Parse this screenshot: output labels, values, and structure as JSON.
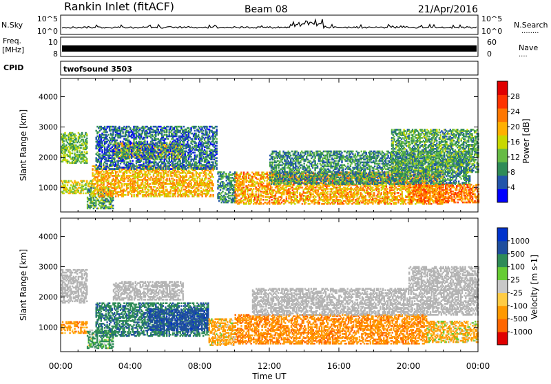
{
  "header": {
    "station": "Rankin Inlet (fitACF)",
    "beam": "Beam 08",
    "date": "21/Apr/2016"
  },
  "top_panels": {
    "nsky_label": "N.Sky",
    "nsearch_label": "N.Search",
    "noise_ticks": [
      "10^5",
      "10^0"
    ],
    "freq_label": "Freq.",
    "freq_unit": "[MHz]",
    "freq_ticks": [
      "10",
      "8"
    ],
    "nave_label": "Nave",
    "nave_ticks": [
      "60",
      "0"
    ],
    "cpid_label": "CPID",
    "cpid_value": "twofsound 3503",
    "dotted_marker": "........",
    "nave_marker": "...."
  },
  "colors": {
    "power_scale": [
      "#0000ff",
      "#2255aa",
      "#2e8b57",
      "#66bb44",
      "#c8d800",
      "#ffb000",
      "#ff7700",
      "#ff3300",
      "#e00000"
    ],
    "velocity_scale": [
      "#e00000",
      "#ff6600",
      "#ff9900",
      "#ffcc44",
      "#c8c8c8",
      "#66cc33",
      "#2e8b57",
      "#1f4e9e",
      "#0033cc"
    ],
    "ground_scatter": "#b4b4b4"
  },
  "chart_data": [
    {
      "type": "heatmap",
      "panel": "power",
      "ylabel": "Slant Range [km]",
      "ylim": [
        200,
        4600
      ],
      "y_ticks": [
        1000,
        2000,
        3000,
        4000
      ],
      "xlim": [
        0,
        24
      ],
      "x_ticks": [
        "00:00",
        "04:00",
        "08:00",
        "12:00",
        "16:00",
        "20:00",
        "00:00"
      ],
      "colorbar": {
        "label": "Power [dB]",
        "range": [
          0,
          32
        ],
        "ticks": [
          4,
          8,
          12,
          16,
          20,
          24,
          28
        ]
      },
      "echo_bands": [
        {
          "t": [
            0.0,
            1.8
          ],
          "r": [
            800,
            1250
          ],
          "value": 18
        },
        {
          "t": [
            0.0,
            1.5
          ],
          "r": [
            1800,
            2800
          ],
          "value": 14
        },
        {
          "t": [
            1.5,
            3.0
          ],
          "r": [
            300,
            1000
          ],
          "value": 12
        },
        {
          "t": [
            1.8,
            8.8
          ],
          "r": [
            700,
            1700
          ],
          "value": 22
        },
        {
          "t": [
            3.0,
            7.0
          ],
          "r": [
            1950,
            2450
          ],
          "value": 20
        },
        {
          "t": [
            2.0,
            9.0
          ],
          "r": [
            1600,
            3000
          ],
          "value": 8
        },
        {
          "t": [
            9.0,
            10.0
          ],
          "r": [
            500,
            1500
          ],
          "value": 10
        },
        {
          "t": [
            10.0,
            22.0
          ],
          "r": [
            450,
            1500
          ],
          "value": 23
        },
        {
          "t": [
            12.0,
            23.5
          ],
          "r": [
            1100,
            2200
          ],
          "value": 10
        },
        {
          "t": [
            19.0,
            24.0
          ],
          "r": [
            1500,
            2900
          ],
          "value": 12
        },
        {
          "t": [
            20.0,
            24.0
          ],
          "r": [
            500,
            1100
          ],
          "value": 26
        }
      ]
    },
    {
      "type": "heatmap",
      "panel": "velocity",
      "ylabel": "Slant Range [km]",
      "ylim": [
        200,
        4600
      ],
      "y_ticks": [
        1000,
        2000,
        3000,
        4000
      ],
      "xlim": [
        0,
        24
      ],
      "x_ticks": [
        "00:00",
        "04:00",
        "08:00",
        "12:00",
        "16:00",
        "20:00",
        "00:00"
      ],
      "xlabel": "Time UT",
      "colorbar": {
        "label": "Velocity [m s-1]",
        "ticks": [
          "1000",
          "500",
          "100",
          "25",
          "-25",
          "-100",
          "-500",
          "-1000"
        ]
      },
      "echo_bands": [
        {
          "t": [
            0.0,
            1.5
          ],
          "r": [
            1800,
            2900
          ],
          "value": 0,
          "ground": true
        },
        {
          "t": [
            0.0,
            1.5
          ],
          "r": [
            800,
            1200
          ],
          "value": -300
        },
        {
          "t": [
            1.5,
            3.0
          ],
          "r": [
            300,
            900
          ],
          "value": 200
        },
        {
          "t": [
            2.0,
            8.5
          ],
          "r": [
            700,
            1800
          ],
          "value": 400
        },
        {
          "t": [
            3.0,
            7.0
          ],
          "r": [
            1900,
            2500
          ],
          "value": 0,
          "ground": true
        },
        {
          "t": [
            5.0,
            8.5
          ],
          "r": [
            900,
            1600
          ],
          "value": 800
        },
        {
          "t": [
            8.5,
            10.0
          ],
          "r": [
            400,
            1300
          ],
          "value": -200
        },
        {
          "t": [
            10.0,
            21.0
          ],
          "r": [
            450,
            1400
          ],
          "value": -400
        },
        {
          "t": [
            11.0,
            24.0
          ],
          "r": [
            1400,
            2300
          ],
          "value": 0,
          "ground": true
        },
        {
          "t": [
            20.0,
            24.0
          ],
          "r": [
            2300,
            3000
          ],
          "value": 0,
          "ground": true
        },
        {
          "t": [
            21.0,
            24.0
          ],
          "r": [
            500,
            1200
          ],
          "value": -150
        }
      ]
    }
  ]
}
